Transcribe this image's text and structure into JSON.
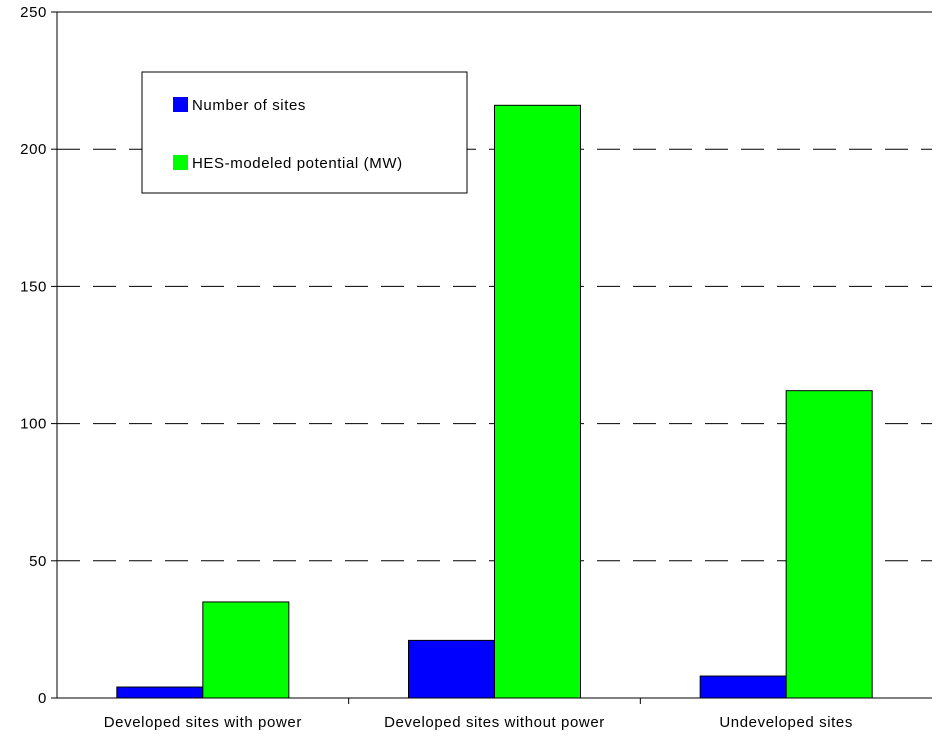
{
  "chart_data": {
    "type": "bar",
    "title": "",
    "xlabel": "",
    "ylabel": "",
    "categories": [
      "Developed sites with power",
      "Developed sites without power",
      "Undeveloped sites"
    ],
    "series": [
      {
        "name": "Number of sites",
        "values": [
          4,
          21,
          8
        ],
        "color": "#0000ff"
      },
      {
        "name": "HES-modeled potential (MW)",
        "values": [
          35,
          216,
          112
        ],
        "color": "#00ff00"
      }
    ],
    "ylim": [
      0,
      250
    ],
    "yticks": [
      0,
      50,
      100,
      150,
      200,
      250
    ],
    "grid": "horizontal-dashed",
    "legend_position": "top-left"
  }
}
